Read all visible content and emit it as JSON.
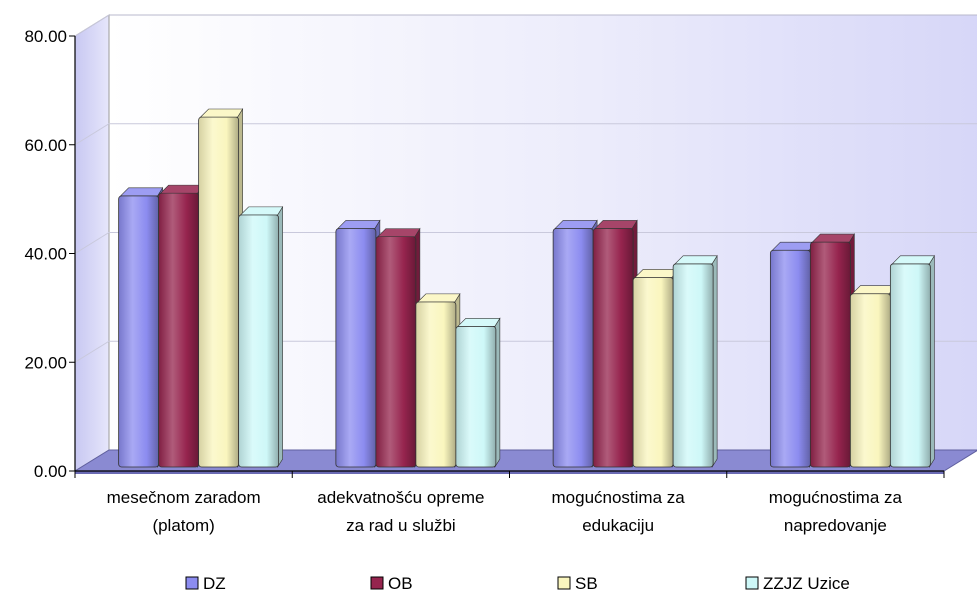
{
  "chart_data": {
    "type": "bar",
    "title": "",
    "xlabel": "",
    "ylabel": "",
    "ylim": [
      0,
      80
    ],
    "y_ticks": [
      "0.00",
      "20.00",
      "40.00",
      "60.00",
      "80.00"
    ],
    "categories": [
      [
        "mesečnom zaradom",
        "(platom)"
      ],
      [
        "adekvatnošću opreme",
        "za rad u službi"
      ],
      [
        "mogućnostima za",
        "edukaciju"
      ],
      [
        "mogućnostima za",
        "napredovanje"
      ]
    ],
    "series": [
      {
        "name": "DZ",
        "color": "#8C8CF0",
        "values": [
          49.5,
          43.5,
          43.5,
          39.5
        ]
      },
      {
        "name": "OB",
        "color": "#96244E",
        "values": [
          50.0,
          42.0,
          43.5,
          41.0
        ]
      },
      {
        "name": "SB",
        "color": "#FAF6BE",
        "values": [
          64.0,
          30.0,
          34.5,
          31.5
        ]
      },
      {
        "name": "ZZJZ Uzice",
        "color": "#CEF8F8",
        "values": [
          46.0,
          25.5,
          37.0,
          37.0
        ]
      }
    ],
    "grid": true,
    "legend_position": "bottom"
  }
}
